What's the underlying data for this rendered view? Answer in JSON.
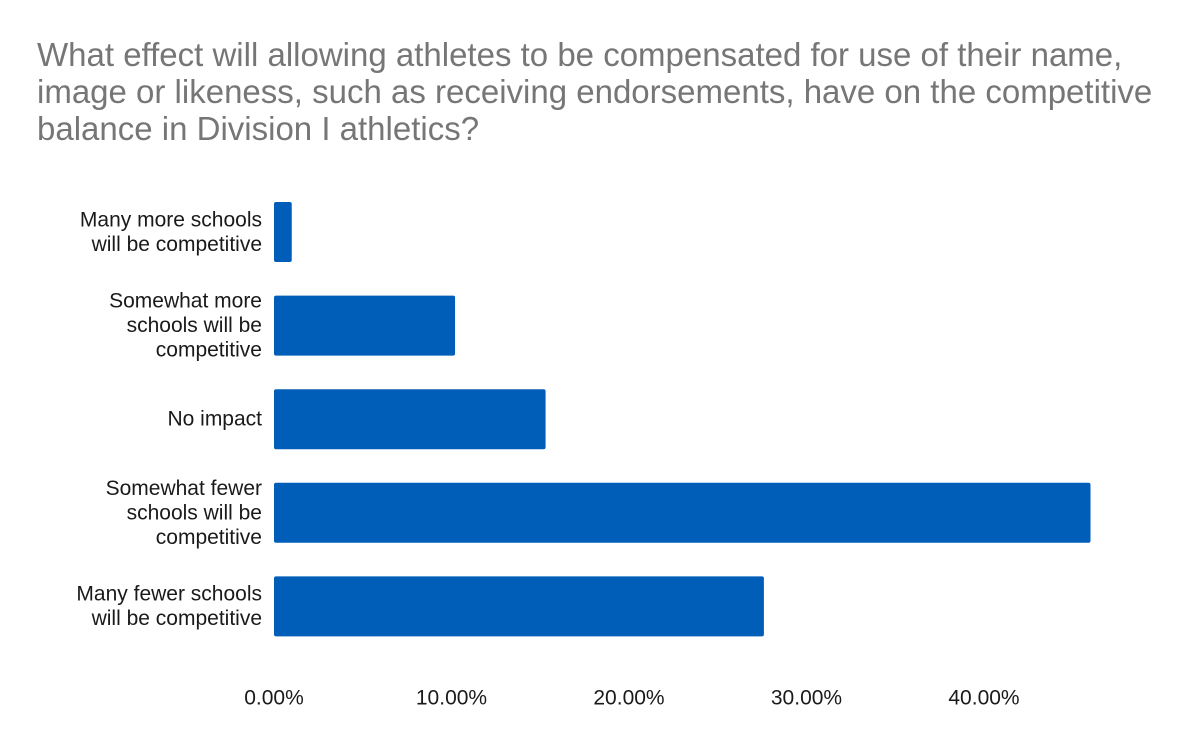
{
  "chart_data": {
    "type": "bar",
    "orientation": "horizontal",
    "title": "What effect will allowing athletes to be compensated for use of their name, image or likeness, such as receiving endorsements, have on the competitive balance in Division I athletics?",
    "categories": [
      "Many more schools will be competitive",
      "Somewhat more schools will be competitive",
      "No impact",
      "Somewhat fewer schools will be competitive",
      "Many fewer schools will be competitive"
    ],
    "category_label_lines": [
      [
        "Many more schools",
        "will be competitive"
      ],
      [
        "Somewhat more",
        "schools will be",
        "competitive"
      ],
      [
        "No impact"
      ],
      [
        "Somewhat fewer",
        "schools will be",
        "competitive"
      ],
      [
        "Many fewer schools",
        "will be competitive"
      ]
    ],
    "values": [
      1.0,
      10.2,
      15.3,
      46.0,
      27.6
    ],
    "value_unit": "%",
    "xlim": [
      0,
      50
    ],
    "xticks": [
      0,
      10,
      20,
      30,
      40
    ],
    "xtick_labels": [
      "0.00%",
      "10.00%",
      "20.00%",
      "30.00%",
      "40.00%"
    ],
    "xlabel": "",
    "ylabel": "",
    "grid": false,
    "legend": "none",
    "bar_color": "#005EB8"
  }
}
